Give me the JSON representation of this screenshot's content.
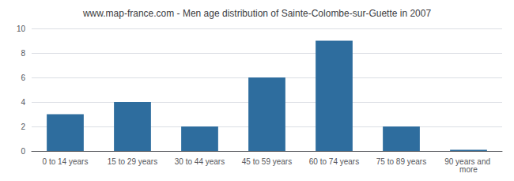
{
  "chart_data": {
    "type": "bar",
    "title": "www.map-france.com - Men age distribution of Sainte-Colombe-sur-Guette in 2007",
    "categories": [
      "0 to 14 years",
      "15 to 29 years",
      "30 to 44 years",
      "45 to 59 years",
      "60 to 74 years",
      "75 to 89 years",
      "90 years and more"
    ],
    "values": [
      3,
      4,
      2,
      6,
      9,
      2,
      0.1
    ],
    "color": "#2e6d9e",
    "ylim": [
      0,
      10
    ],
    "yticks": [
      0,
      2,
      4,
      6,
      8,
      10
    ],
    "grid": true
  }
}
